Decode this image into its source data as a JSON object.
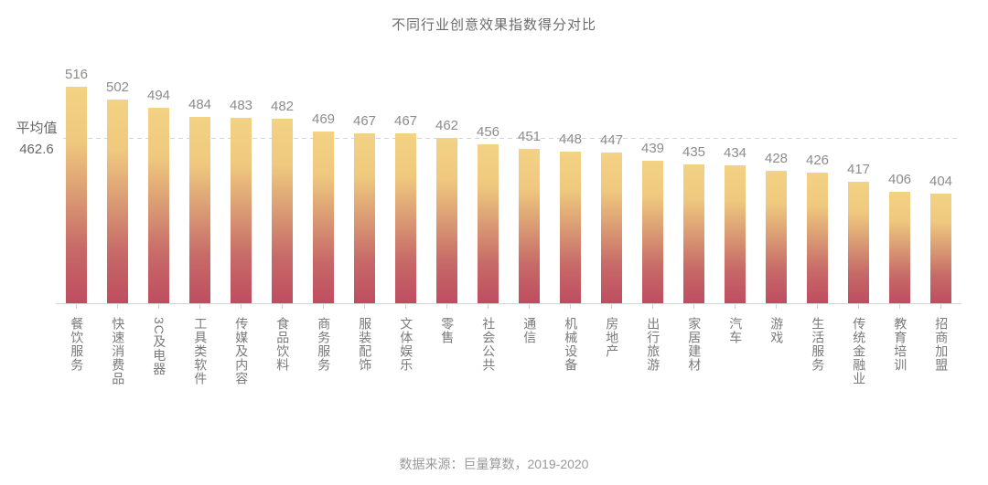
{
  "page": {
    "background": "#ffffff"
  },
  "chart_data": {
    "type": "bar",
    "title": "不同行业创意效果指数得分对比",
    "categories": [
      "餐饮服务",
      "快速消费品",
      "3C及电器",
      "工具类软件",
      "传媒及内容",
      "食品饮料",
      "商务服务",
      "服装配饰",
      "文体娱乐",
      "零售",
      "社会公共",
      "通信",
      "机械设备",
      "房地产",
      "出行旅游",
      "家居建材",
      "汽车",
      "游戏",
      "生活服务",
      "传统金融业",
      "教育培训",
      "招商加盟"
    ],
    "values": [
      516,
      502,
      494,
      484,
      483,
      482,
      469,
      467,
      467,
      462,
      456,
      451,
      448,
      447,
      439,
      435,
      434,
      428,
      426,
      417,
      406,
      404
    ],
    "average": {
      "label": "平均值",
      "value": "462.6"
    },
    "source_note": "数据来源：巨量算数，2019-2020",
    "xlabel": "",
    "ylabel": "",
    "ylim": [
      290,
      530
    ],
    "grid": false,
    "legend_position": "none",
    "colors": {
      "bar_gradient": [
        "#F3D284",
        "#EFC97E",
        "#DA9B74",
        "#C76A68",
        "#BE4D60"
      ],
      "average_line": "#D5D5D5",
      "axis_line": "#D4D4D4",
      "value_label": "#8C8C8C",
      "category_label": "#7A7A7A",
      "title": "#6B6B6B",
      "source": "#999999"
    }
  }
}
